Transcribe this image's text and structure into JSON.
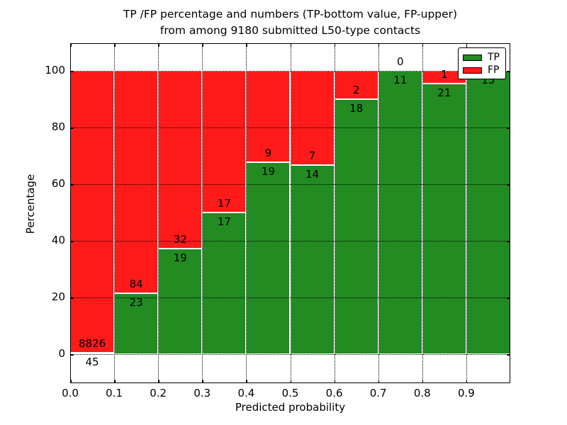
{
  "figure": {
    "title_line1": "TP /FP percentage and numbers (TP-bottom value, FP-upper)",
    "title_line2": "from among 9180 submitted L50-type contacts",
    "total_contacts": 9180
  },
  "chart_data": {
    "type": "bar",
    "stacked": true,
    "title": "TP /FP percentage and numbers (TP-bottom value, FP-upper) from among 9180 submitted L50-type contacts",
    "xlabel": "Predicted probability",
    "ylabel": "Percentage",
    "ylim": [
      -10,
      110
    ],
    "yticks": [
      0,
      20,
      40,
      60,
      80,
      100
    ],
    "ytick_labels": [
      "0",
      "20",
      "40",
      "60",
      "80",
      "100"
    ],
    "xtick_labels": [
      "0.0",
      "0.1",
      "0.2",
      "0.3",
      "0.4",
      "0.5",
      "0.6",
      "0.7",
      "0.8",
      "0.9"
    ],
    "grid": true,
    "grid_style": "dotted",
    "legend_position": "upper right",
    "categories": [
      "0.0-0.1",
      "0.1-0.2",
      "0.2-0.3",
      "0.3-0.4",
      "0.4-0.5",
      "0.5-0.6",
      "0.6-0.7",
      "0.7-0.8",
      "0.8-0.9",
      "0.9-1.0"
    ],
    "series": [
      {
        "name": "TP",
        "color": "#228B22",
        "counts": [
          45,
          23,
          19,
          17,
          19,
          14,
          18,
          11,
          21,
          15
        ],
        "pct": [
          0.51,
          21.5,
          37.25,
          50.0,
          67.86,
          66.67,
          90.0,
          100.0,
          95.45,
          100.0
        ]
      },
      {
        "name": "FP",
        "color": "#FF1A1A",
        "counts": [
          8826,
          84,
          32,
          17,
          9,
          7,
          2,
          0,
          1,
          0
        ],
        "pct": [
          99.49,
          78.5,
          62.75,
          50.0,
          32.14,
          33.33,
          10.0,
          0.0,
          4.55,
          0.0
        ]
      }
    ],
    "visible_bar_labels": {
      "tp": [
        "45",
        "23",
        "19",
        "17",
        "19",
        "14",
        "18",
        "11",
        "21",
        "15"
      ],
      "fp": [
        "8826",
        "84",
        "32",
        "17",
        "9",
        "7",
        "2",
        "0",
        "1",
        ""
      ]
    },
    "legend": {
      "entries": [
        {
          "label": "TP",
          "color": "#228B22"
        },
        {
          "label": "FP",
          "color": "#FF1A1A"
        }
      ]
    }
  }
}
